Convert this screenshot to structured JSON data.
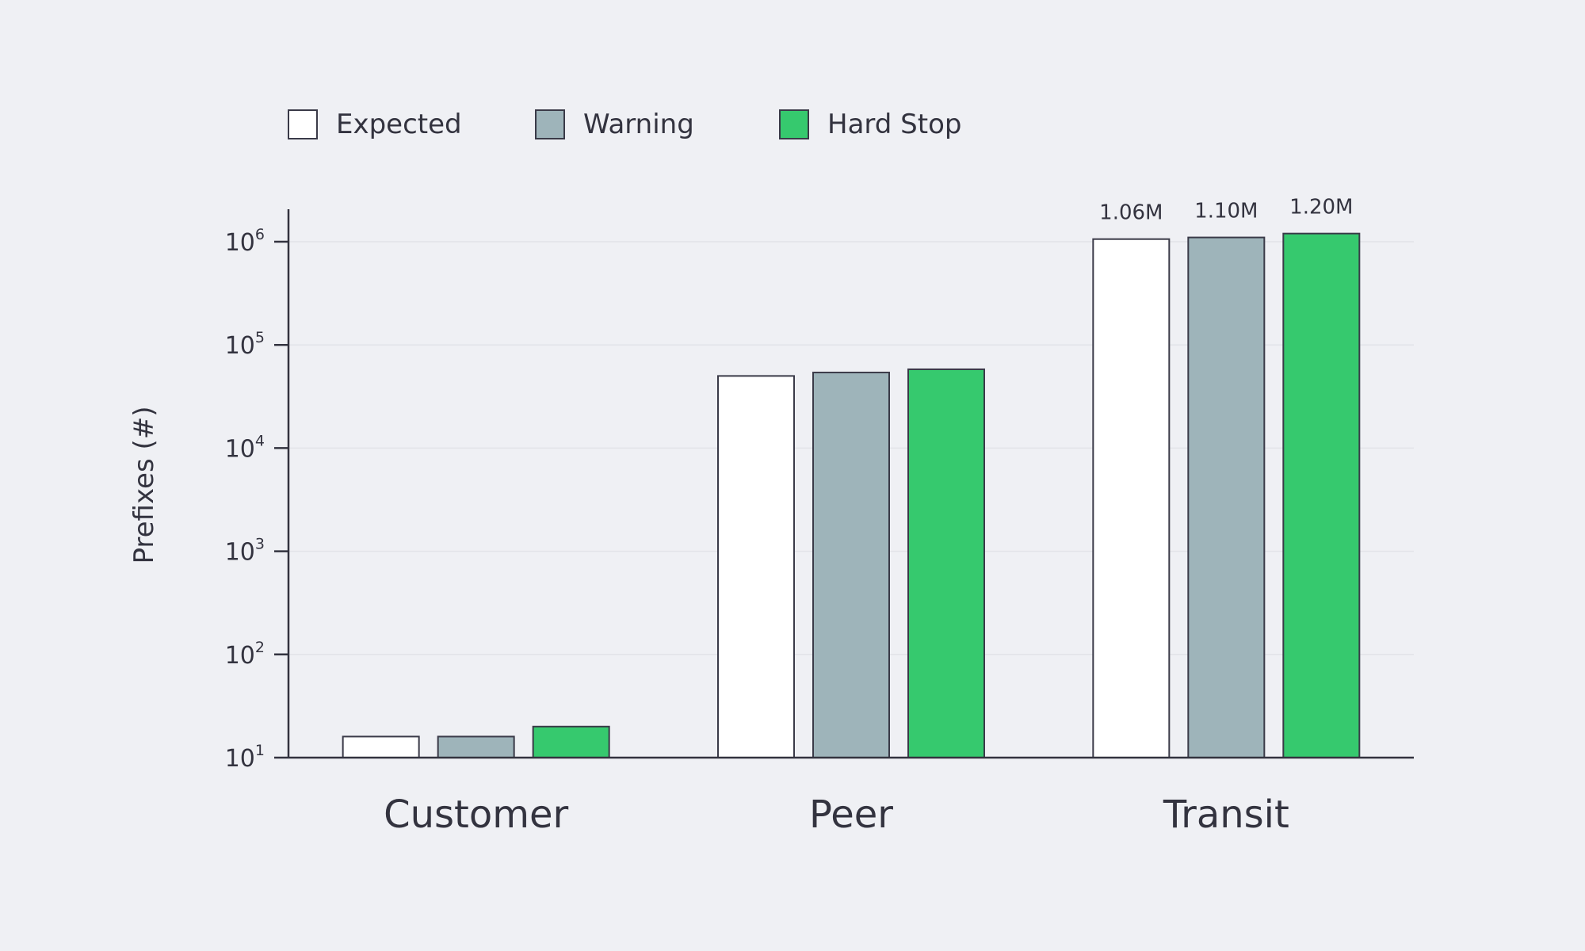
{
  "chart_data": {
    "type": "bar",
    "ylabel": "Prefixes (#)",
    "xlabel": "",
    "yscale": "log",
    "ylim": [
      10,
      1000000
    ],
    "y_ticks": [
      {
        "base": "10",
        "exp": "1",
        "value": 10
      },
      {
        "base": "10",
        "exp": "2",
        "value": 100
      },
      {
        "base": "10",
        "exp": "3",
        "value": 1000
      },
      {
        "base": "10",
        "exp": "4",
        "value": 10000
      },
      {
        "base": "10",
        "exp": "5",
        "value": 100000
      },
      {
        "base": "10",
        "exp": "6",
        "value": 1000000
      }
    ],
    "categories": [
      "Customer",
      "Peer",
      "Transit"
    ],
    "series": [
      {
        "name": "Expected",
        "color": "#ffffff",
        "values": [
          16,
          50000,
          1060000
        ],
        "labels": [
          "",
          "",
          "1.06M"
        ]
      },
      {
        "name": "Warning",
        "color": "#9eb4ba",
        "values": [
          16,
          54000,
          1100000
        ],
        "labels": [
          "",
          "",
          "1.10M"
        ]
      },
      {
        "name": "Hard Stop",
        "color": "#36c96e",
        "values": [
          20,
          58000,
          1200000
        ],
        "labels": [
          "",
          "",
          "1.20M"
        ]
      }
    ],
    "legend_position": "top-left",
    "grid": true
  },
  "colors": {
    "axis": "#33333f",
    "grid": "#e2e3e8",
    "background": "#eff0f4",
    "bar_stroke": "#3a3a48"
  }
}
